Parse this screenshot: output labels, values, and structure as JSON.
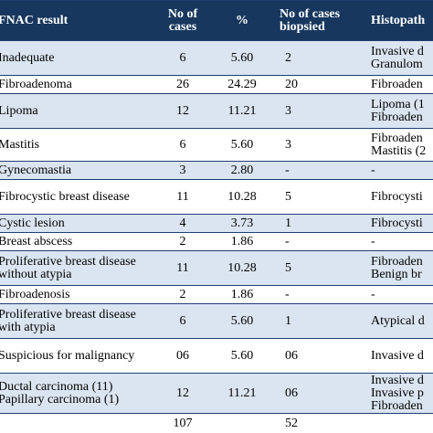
{
  "table": {
    "header": [
      "FNAC result",
      "No of cases",
      "%",
      "No of cases biopsied",
      "Histopath"
    ],
    "rows": [
      [
        "Inadequate",
        "6",
        "5.60",
        "2",
        [
          "Invasive d",
          "Granulom"
        ]
      ],
      [
        "Fibroadenoma",
        "26",
        "24.29",
        "20",
        [
          "Fibroaden"
        ]
      ],
      [
        "Lipoma",
        "12",
        "11.21",
        "3",
        [
          "Lipoma (1",
          "Fibroaden"
        ]
      ],
      [
        "Mastitis",
        "6",
        "5.60",
        "3",
        [
          "Fibroaden",
          "Mastitis (2"
        ]
      ],
      [
        "Gynecomastia",
        "3",
        "2.80",
        "-",
        [
          "-"
        ]
      ],
      [
        "Fibrocystic breast disease",
        "11",
        "10.28",
        "5",
        [
          "Fibrocysti"
        ]
      ],
      [
        "Cystic lesion",
        "4",
        "3.73",
        "1",
        [
          "Fibrocysti"
        ]
      ],
      [
        "Breast abscess",
        "2",
        "1.86",
        "-",
        [
          "-"
        ]
      ],
      [
        "Proliferative breast disease without atypia",
        "11",
        "10.28",
        "5",
        [
          "Fibroaden",
          "Benign br"
        ]
      ],
      [
        "Fibroadenosis",
        "2",
        "1.86",
        "-",
        [
          "-"
        ]
      ],
      [
        "Proliferative breast disease with atypia",
        "6",
        "5.60",
        "1",
        [
          "Atypical d"
        ]
      ],
      [
        "Suspicious for malignancy",
        "06",
        "5.60",
        "06",
        [
          "Invasive d"
        ]
      ],
      [
        "Ductal carcinoma (11) Papillary carcinoma (1)",
        "12",
        "11.21",
        "06",
        [
          "Invasive d",
          "Invasive p",
          "Fibroaden"
        ]
      ],
      [
        null,
        "107",
        null,
        "52",
        null
      ]
    ]
  }
}
